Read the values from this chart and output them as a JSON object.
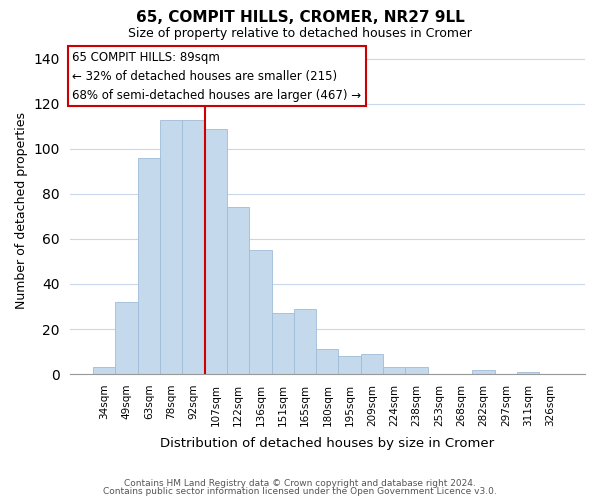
{
  "title": "65, COMPIT HILLS, CROMER, NR27 9LL",
  "subtitle": "Size of property relative to detached houses in Cromer",
  "xlabel": "Distribution of detached houses by size in Cromer",
  "ylabel": "Number of detached properties",
  "categories": [
    "34sqm",
    "49sqm",
    "63sqm",
    "78sqm",
    "92sqm",
    "107sqm",
    "122sqm",
    "136sqm",
    "151sqm",
    "165sqm",
    "180sqm",
    "195sqm",
    "209sqm",
    "224sqm",
    "238sqm",
    "253sqm",
    "268sqm",
    "282sqm",
    "297sqm",
    "311sqm",
    "326sqm"
  ],
  "values": [
    3,
    32,
    96,
    113,
    113,
    109,
    74,
    55,
    27,
    29,
    11,
    8,
    9,
    3,
    3,
    0,
    0,
    2,
    0,
    1,
    0
  ],
  "bar_color": "#c5d9ed",
  "bar_edge_color": "#a0bcd8",
  "vline_x": 4.5,
  "vline_color": "#cc0000",
  "ylim": [
    0,
    145
  ],
  "yticks": [
    0,
    20,
    40,
    60,
    80,
    100,
    120,
    140
  ],
  "annotation_title": "65 COMPIT HILLS: 89sqm",
  "annotation_line1": "← 32% of detached houses are smaller (215)",
  "annotation_line2": "68% of semi-detached houses are larger (467) →",
  "annotation_box_color": "#ffffff",
  "annotation_box_edgecolor": "#cc0000",
  "footer_line1": "Contains HM Land Registry data © Crown copyright and database right 2024.",
  "footer_line2": "Contains public sector information licensed under the Open Government Licence v3.0.",
  "background_color": "#ffffff",
  "grid_color": "#c8d8ea"
}
